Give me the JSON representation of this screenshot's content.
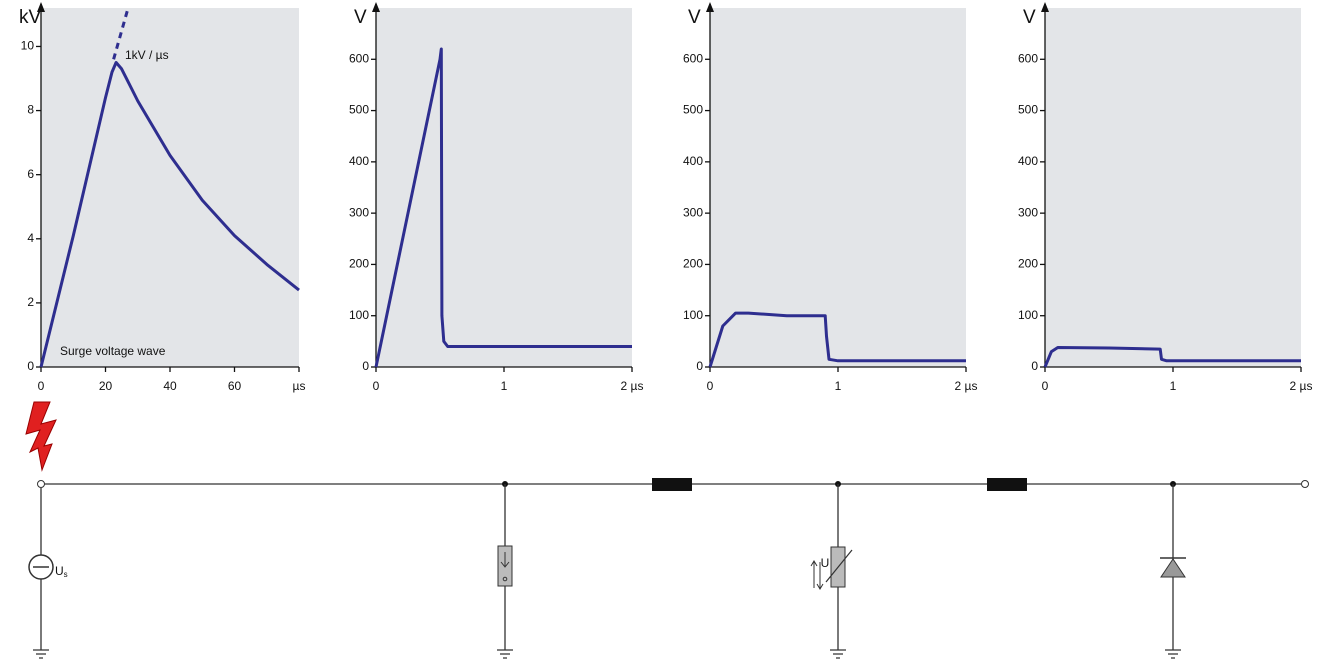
{
  "chart_data": [
    {
      "type": "line",
      "ylabel": "kV",
      "xlim": [
        0,
        80
      ],
      "ylim": [
        0,
        11.2
      ],
      "xticks": [
        0,
        20,
        40,
        60,
        {
          "value": 80,
          "label": "µs"
        }
      ],
      "yticks": [
        0,
        2,
        4,
        6,
        8,
        10
      ],
      "annotations": [
        "1kV / µs",
        "Surge voltage wave"
      ],
      "series": [
        {
          "color": "#2e2e8f",
          "x": [
            0,
            10,
            20,
            22,
            23.3,
            25,
            30,
            40,
            50,
            60,
            70,
            80
          ],
          "values": [
            0,
            4.1,
            8.4,
            9.2,
            9.5,
            9.3,
            8.3,
            6.6,
            5.2,
            4.1,
            3.2,
            2.4
          ]
        },
        {
          "color": "#2e2e8f",
          "dash": true,
          "x": [
            22.5,
            27
          ],
          "values": [
            9.6,
            11.2
          ]
        }
      ]
    },
    {
      "type": "line",
      "ylabel": "V",
      "xlim": [
        0,
        2
      ],
      "ylim": [
        0,
        700
      ],
      "xticks": [
        0,
        1,
        {
          "value": 2,
          "label": "2 µs"
        }
      ],
      "yticks": [
        0,
        100,
        200,
        300,
        400,
        500,
        600
      ],
      "series": [
        {
          "color": "#2e2e8f",
          "x": [
            0,
            0.5,
            0.51,
            0.515,
            0.53,
            0.56,
            1,
            2
          ],
          "values": [
            0,
            600,
            620,
            100,
            50,
            40,
            40,
            40
          ]
        }
      ]
    },
    {
      "type": "line",
      "ylabel": "V",
      "xlim": [
        0,
        2
      ],
      "ylim": [
        0,
        700
      ],
      "xticks": [
        0,
        1,
        {
          "value": 2,
          "label": "2 µs"
        }
      ],
      "yticks": [
        0,
        100,
        200,
        300,
        400,
        500,
        600
      ],
      "series": [
        {
          "color": "#2e2e8f",
          "x": [
            0,
            0.1,
            0.2,
            0.3,
            0.6,
            0.9,
            0.91,
            0.93,
            1,
            2
          ],
          "values": [
            0,
            80,
            105,
            105,
            100,
            100,
            60,
            15,
            12,
            12
          ]
        }
      ]
    },
    {
      "type": "line",
      "ylabel": "V",
      "xlim": [
        0,
        2
      ],
      "ylim": [
        0,
        700
      ],
      "xticks": [
        0,
        1,
        {
          "value": 2,
          "label": "2 µs"
        }
      ],
      "yticks": [
        0,
        100,
        200,
        300,
        400,
        500,
        600
      ],
      "series": [
        {
          "color": "#2e2e8f",
          "x": [
            0,
            0.05,
            0.1,
            0.5,
            0.9,
            0.91,
            0.95,
            2
          ],
          "values": [
            0,
            30,
            38,
            37,
            35,
            15,
            12,
            12
          ]
        }
      ]
    }
  ],
  "diagram": {
    "source_label": "U",
    "source_label_subscript": "s",
    "varistor_label": "U"
  }
}
